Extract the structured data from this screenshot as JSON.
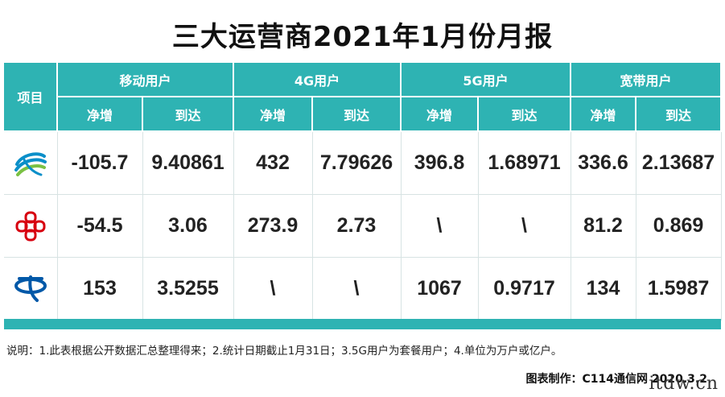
{
  "title": "三大运营商2021年1月份月报",
  "header": {
    "item_label": "项目",
    "groups": [
      "移动用户",
      "4G用户",
      "5G用户",
      "宽带用户"
    ],
    "sub": [
      "净增",
      "到达"
    ]
  },
  "rows": [
    {
      "logo": "china-mobile-logo",
      "values": [
        "-105.7",
        "9.40861",
        "432",
        "7.79626",
        "396.8",
        "1.68971",
        "336.6",
        "2.13687"
      ]
    },
    {
      "logo": "china-unicom-logo",
      "values": [
        "-54.5",
        "3.06",
        "273.9",
        "2.73",
        "\\",
        "\\",
        "81.2",
        "0.869"
      ]
    },
    {
      "logo": "china-telecom-logo",
      "values": [
        "153",
        "3.5255",
        "\\",
        "\\",
        "1067",
        "0.9717",
        "134",
        "1.5987"
      ]
    }
  ],
  "note": "说明：1.此表根据公开数据汇总整理得来；2.统计日期截止1月31日；3.5G用户为套餐用户；4.单位为万户或亿户。",
  "credit": "图表制作：C114通信网  2020.3.2",
  "watermark": "itdw.cn",
  "colors": {
    "header_bg": "#2eb3b3",
    "mobile": "#0a8fc9",
    "unicom": "#d7000f",
    "telecom": "#0058a8"
  }
}
